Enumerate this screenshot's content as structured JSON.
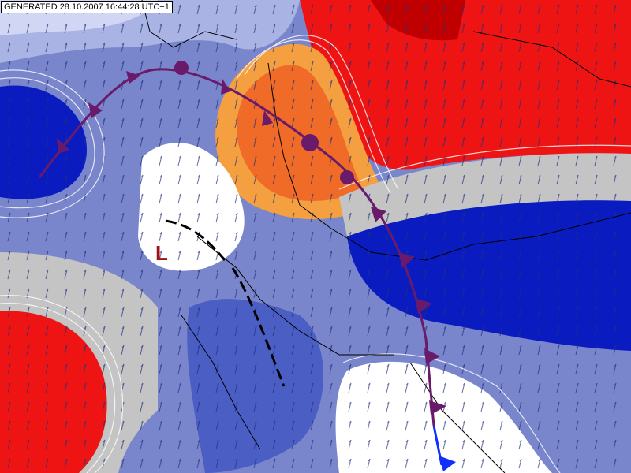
{
  "header": {
    "generated": "GENERATED 28.10.2007 16:44:28 UTC+1"
  },
  "map": {
    "low_label": "L"
  }
}
